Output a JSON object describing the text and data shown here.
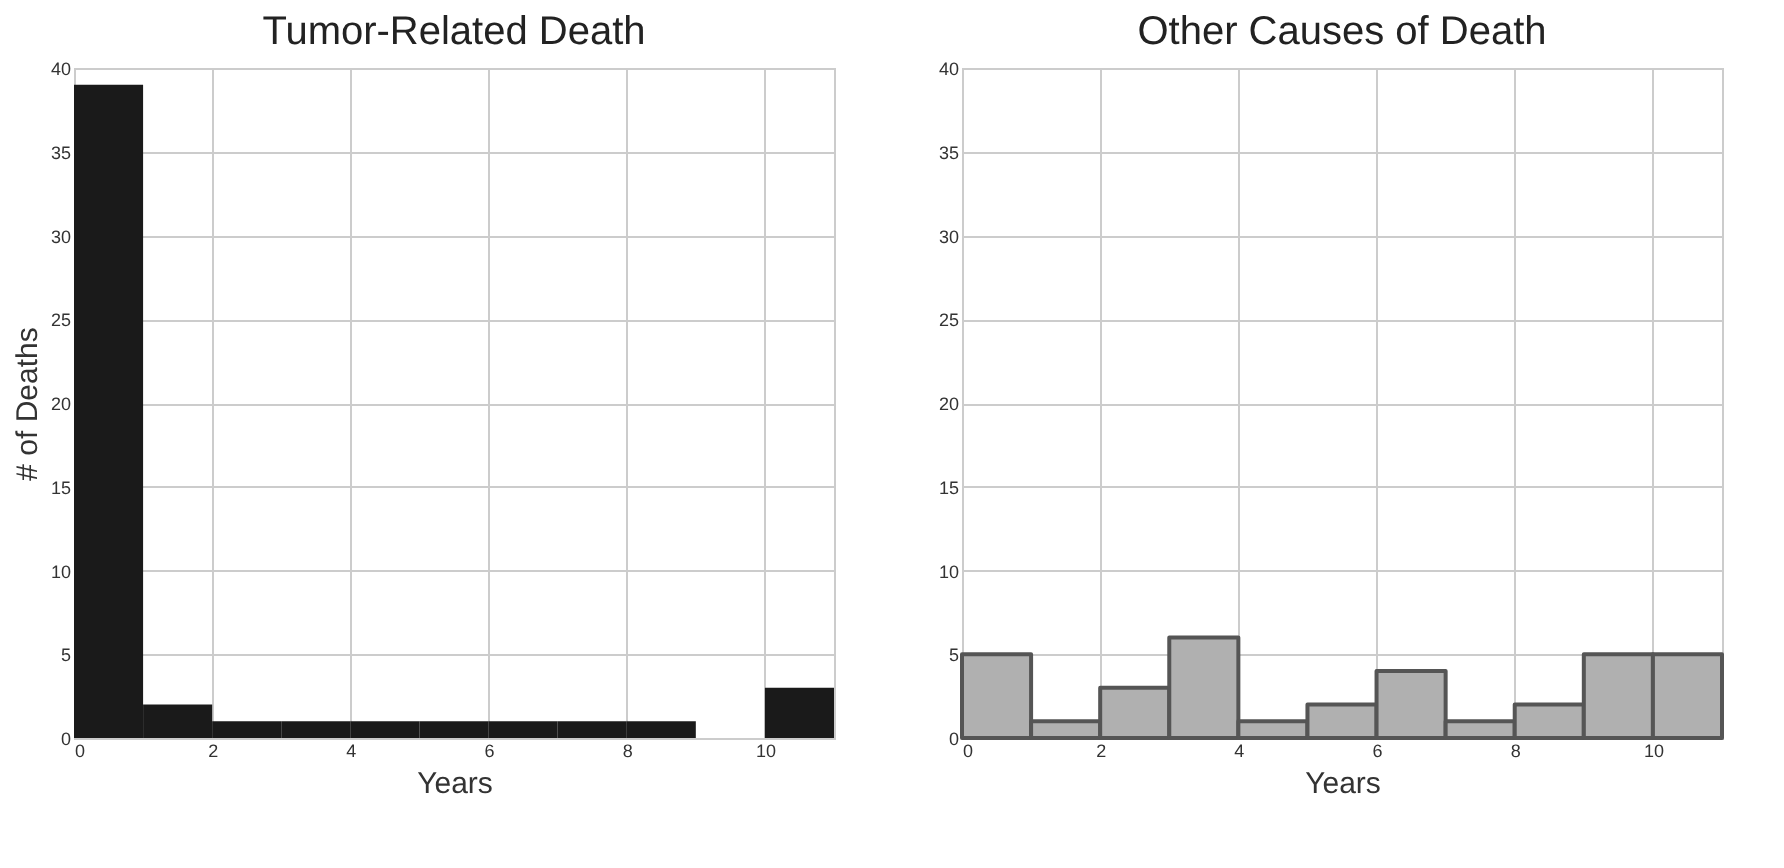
{
  "chart_data": [
    {
      "type": "histogram",
      "title": "Tumor-Related Death",
      "xlabel": "Years",
      "ylabel": "# of Deaths",
      "bins": [
        0,
        1,
        2,
        3,
        4,
        5,
        6,
        7,
        8,
        9,
        10,
        11
      ],
      "values": [
        39,
        2,
        1,
        1,
        1,
        1,
        1,
        1,
        1,
        0,
        3
      ],
      "color": "#1a1a1a",
      "xlim": [
        0,
        11
      ],
      "xticks": [
        0,
        2,
        4,
        6,
        8,
        10
      ],
      "ylim": [
        0,
        40
      ],
      "yticks": [
        0,
        5,
        10,
        15,
        20,
        25,
        30,
        35,
        40
      ],
      "grid": true
    },
    {
      "type": "histogram",
      "title": "Other Causes of Death",
      "xlabel": "Years",
      "bins": [
        0,
        1,
        2,
        3,
        4,
        5,
        6,
        7,
        8,
        9,
        10,
        11
      ],
      "values": [
        5,
        1,
        3,
        6,
        1,
        2,
        4,
        1,
        2,
        5,
        5
      ],
      "color": "#b0b0b0",
      "line_style": "solid",
      "xlim": [
        0,
        11
      ],
      "xticks": [
        0,
        2,
        4,
        6,
        8,
        10
      ],
      "ylim": [
        0,
        40
      ],
      "yticks": [
        0,
        5,
        10,
        15,
        20,
        25,
        30,
        35,
        40
      ],
      "grid": true
    }
  ]
}
